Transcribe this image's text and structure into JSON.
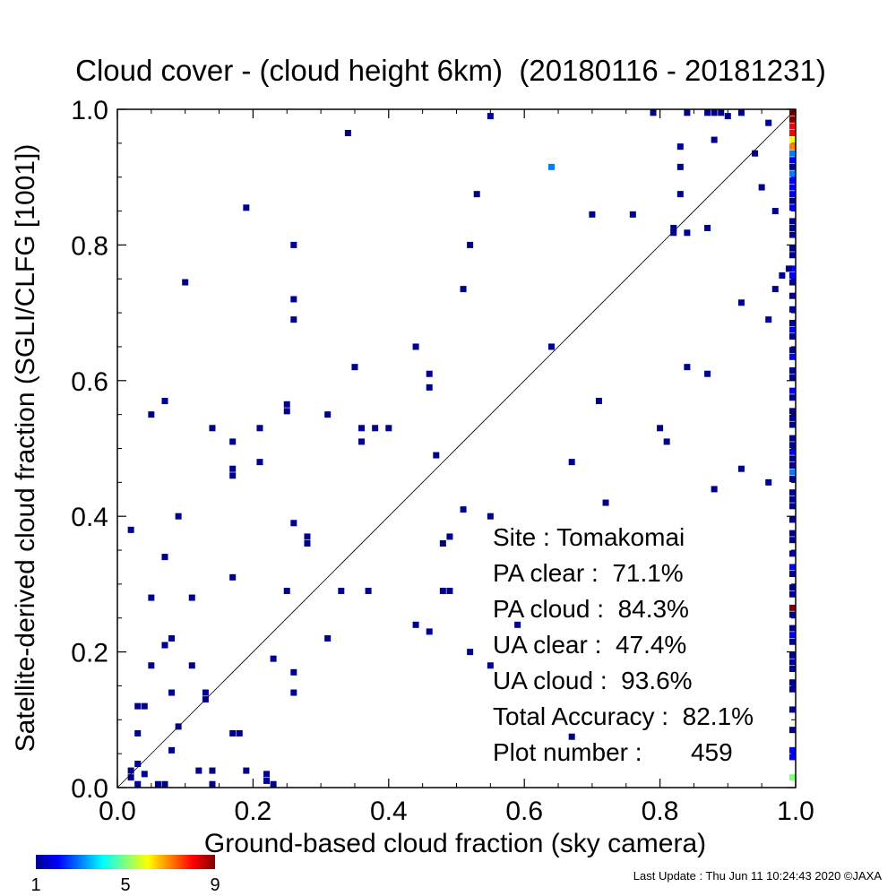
{
  "chart_data": {
    "type": "heatmap",
    "title": "Cloud cover - (cloud height 6km)  (20180116 - 20181231)",
    "xlabel": "Ground-based cloud fraction (sky camera)",
    "ylabel": "Satellite-derived cloud fraction (SGLI/CLFG [1001])",
    "xlim": [
      0.0,
      1.0
    ],
    "ylim": [
      0.0,
      1.0
    ],
    "xticks": [
      "0.0",
      "0.2",
      "0.4",
      "0.6",
      "0.8",
      "1.0"
    ],
    "yticks": [
      "0.0",
      "0.2",
      "0.4",
      "0.6",
      "0.8",
      "1.0"
    ],
    "diagonal": "1:1 line",
    "colorbar": {
      "min": 1,
      "max": 9,
      "ticks": [
        "1",
        "5",
        "9"
      ]
    },
    "points": [
      {
        "x": 0.55,
        "y": 0.99,
        "c": 1
      },
      {
        "x": 0.79,
        "y": 0.995,
        "c": 1
      },
      {
        "x": 0.84,
        "y": 0.995,
        "c": 1
      },
      {
        "x": 0.87,
        "y": 0.995,
        "c": 1
      },
      {
        "x": 0.88,
        "y": 0.995,
        "c": 1
      },
      {
        "x": 0.89,
        "y": 0.995,
        "c": 1
      },
      {
        "x": 0.9,
        "y": 0.99,
        "c": 1
      },
      {
        "x": 0.92,
        "y": 0.995,
        "c": 1
      },
      {
        "x": 0.96,
        "y": 0.98,
        "c": 1
      },
      {
        "x": 0.34,
        "y": 0.965,
        "c": 1
      },
      {
        "x": 0.64,
        "y": 0.915,
        "c": 3
      },
      {
        "x": 0.53,
        "y": 0.875,
        "c": 1
      },
      {
        "x": 0.19,
        "y": 0.855,
        "c": 1
      },
      {
        "x": 0.7,
        "y": 0.845,
        "c": 1
      },
      {
        "x": 0.76,
        "y": 0.845,
        "c": 1
      },
      {
        "x": 0.82,
        "y": 0.825,
        "c": 1
      },
      {
        "x": 0.82,
        "y": 0.818,
        "c": 1
      },
      {
        "x": 0.84,
        "y": 0.818,
        "c": 1
      },
      {
        "x": 0.87,
        "y": 0.825,
        "c": 1
      },
      {
        "x": 0.26,
        "y": 0.8,
        "c": 1
      },
      {
        "x": 0.52,
        "y": 0.8,
        "c": 1
      },
      {
        "x": 0.83,
        "y": 0.945,
        "c": 1
      },
      {
        "x": 0.83,
        "y": 0.915,
        "c": 1
      },
      {
        "x": 0.83,
        "y": 0.875,
        "c": 1
      },
      {
        "x": 0.88,
        "y": 0.955,
        "c": 1
      },
      {
        "x": 0.94,
        "y": 0.935,
        "c": 1
      },
      {
        "x": 0.95,
        "y": 0.885,
        "c": 1
      },
      {
        "x": 0.97,
        "y": 0.85,
        "c": 1
      },
      {
        "x": 0.97,
        "y": 0.735,
        "c": 1
      },
      {
        "x": 0.92,
        "y": 0.715,
        "c": 1
      },
      {
        "x": 0.96,
        "y": 0.69,
        "c": 1
      },
      {
        "x": 0.1,
        "y": 0.745,
        "c": 1
      },
      {
        "x": 0.51,
        "y": 0.735,
        "c": 1
      },
      {
        "x": 0.26,
        "y": 0.72,
        "c": 1
      },
      {
        "x": 0.26,
        "y": 0.69,
        "c": 1
      },
      {
        "x": 0.44,
        "y": 0.65,
        "c": 1
      },
      {
        "x": 0.64,
        "y": 0.65,
        "c": 1
      },
      {
        "x": 0.35,
        "y": 0.62,
        "c": 1
      },
      {
        "x": 0.46,
        "y": 0.61,
        "c": 1
      },
      {
        "x": 0.46,
        "y": 0.59,
        "c": 1
      },
      {
        "x": 0.84,
        "y": 0.62,
        "c": 1
      },
      {
        "x": 0.87,
        "y": 0.61,
        "c": 1
      },
      {
        "x": 0.07,
        "y": 0.57,
        "c": 1
      },
      {
        "x": 0.05,
        "y": 0.55,
        "c": 1
      },
      {
        "x": 0.25,
        "y": 0.565,
        "c": 1
      },
      {
        "x": 0.25,
        "y": 0.555,
        "c": 1
      },
      {
        "x": 0.31,
        "y": 0.55,
        "c": 1
      },
      {
        "x": 0.71,
        "y": 0.57,
        "c": 1
      },
      {
        "x": 0.14,
        "y": 0.53,
        "c": 1
      },
      {
        "x": 0.21,
        "y": 0.53,
        "c": 1
      },
      {
        "x": 0.36,
        "y": 0.53,
        "c": 1
      },
      {
        "x": 0.38,
        "y": 0.53,
        "c": 1
      },
      {
        "x": 0.4,
        "y": 0.53,
        "c": 1
      },
      {
        "x": 0.17,
        "y": 0.51,
        "c": 1
      },
      {
        "x": 0.36,
        "y": 0.51,
        "c": 1
      },
      {
        "x": 0.8,
        "y": 0.53,
        "c": 1
      },
      {
        "x": 0.81,
        "y": 0.51,
        "c": 1
      },
      {
        "x": 0.47,
        "y": 0.49,
        "c": 1
      },
      {
        "x": 0.21,
        "y": 0.48,
        "c": 1
      },
      {
        "x": 0.17,
        "y": 0.47,
        "c": 1
      },
      {
        "x": 0.17,
        "y": 0.46,
        "c": 1
      },
      {
        "x": 0.67,
        "y": 0.48,
        "c": 1
      },
      {
        "x": 0.92,
        "y": 0.47,
        "c": 1
      },
      {
        "x": 0.96,
        "y": 0.45,
        "c": 1
      },
      {
        "x": 0.88,
        "y": 0.44,
        "c": 1
      },
      {
        "x": 0.72,
        "y": 0.42,
        "c": 1
      },
      {
        "x": 0.51,
        "y": 0.41,
        "c": 1
      },
      {
        "x": 0.55,
        "y": 0.4,
        "c": 1
      },
      {
        "x": 0.09,
        "y": 0.4,
        "c": 1
      },
      {
        "x": 0.26,
        "y": 0.39,
        "c": 1
      },
      {
        "x": 0.02,
        "y": 0.38,
        "c": 1
      },
      {
        "x": 0.28,
        "y": 0.37,
        "c": 1
      },
      {
        "x": 0.28,
        "y": 0.36,
        "c": 1
      },
      {
        "x": 0.49,
        "y": 0.37,
        "c": 1
      },
      {
        "x": 0.48,
        "y": 0.36,
        "c": 1
      },
      {
        "x": 0.07,
        "y": 0.34,
        "c": 1
      },
      {
        "x": 0.17,
        "y": 0.31,
        "c": 1
      },
      {
        "x": 0.25,
        "y": 0.29,
        "c": 1
      },
      {
        "x": 0.33,
        "y": 0.29,
        "c": 1
      },
      {
        "x": 0.37,
        "y": 0.29,
        "c": 1
      },
      {
        "x": 0.48,
        "y": 0.29,
        "c": 1
      },
      {
        "x": 0.49,
        "y": 0.29,
        "c": 1
      },
      {
        "x": 0.05,
        "y": 0.28,
        "c": 1
      },
      {
        "x": 0.11,
        "y": 0.28,
        "c": 1
      },
      {
        "x": 0.44,
        "y": 0.24,
        "c": 1
      },
      {
        "x": 0.46,
        "y": 0.23,
        "c": 1
      },
      {
        "x": 0.59,
        "y": 0.24,
        "c": 1
      },
      {
        "x": 0.31,
        "y": 0.22,
        "c": 1
      },
      {
        "x": 0.08,
        "y": 0.22,
        "c": 1
      },
      {
        "x": 0.07,
        "y": 0.21,
        "c": 1
      },
      {
        "x": 0.52,
        "y": 0.2,
        "c": 1
      },
      {
        "x": 0.23,
        "y": 0.19,
        "c": 1
      },
      {
        "x": 0.05,
        "y": 0.18,
        "c": 1
      },
      {
        "x": 0.11,
        "y": 0.18,
        "c": 1
      },
      {
        "x": 0.55,
        "y": 0.18,
        "c": 1
      },
      {
        "x": 0.26,
        "y": 0.17,
        "c": 1
      },
      {
        "x": 0.26,
        "y": 0.14,
        "c": 1
      },
      {
        "x": 0.08,
        "y": 0.14,
        "c": 1
      },
      {
        "x": 0.13,
        "y": 0.14,
        "c": 1
      },
      {
        "x": 0.13,
        "y": 0.13,
        "c": 1
      },
      {
        "x": 0.03,
        "y": 0.12,
        "c": 1
      },
      {
        "x": 0.04,
        "y": 0.12,
        "c": 1
      },
      {
        "x": 0.09,
        "y": 0.09,
        "c": 1
      },
      {
        "x": 0.03,
        "y": 0.08,
        "c": 1
      },
      {
        "x": 0.17,
        "y": 0.08,
        "c": 1
      },
      {
        "x": 0.18,
        "y": 0.08,
        "c": 1
      },
      {
        "x": 0.67,
        "y": 0.075,
        "c": 1
      },
      {
        "x": 0.08,
        "y": 0.055,
        "c": 1
      },
      {
        "x": 0.03,
        "y": 0.035,
        "c": 1
      },
      {
        "x": 0.02,
        "y": 0.025,
        "c": 1
      },
      {
        "x": 0.02,
        "y": 0.015,
        "c": 1
      },
      {
        "x": 0.04,
        "y": 0.02,
        "c": 1
      },
      {
        "x": 0.12,
        "y": 0.025,
        "c": 1
      },
      {
        "x": 0.14,
        "y": 0.025,
        "c": 1
      },
      {
        "x": 0.19,
        "y": 0.025,
        "c": 1
      },
      {
        "x": 0.22,
        "y": 0.02,
        "c": 1
      },
      {
        "x": 0.22,
        "y": 0.01,
        "c": 1
      },
      {
        "x": 0.23,
        "y": 0.005,
        "c": 1
      },
      {
        "x": 0.03,
        "y": 0.005,
        "c": 1
      },
      {
        "x": 0.06,
        "y": 0.005,
        "c": 1
      },
      {
        "x": 0.07,
        "y": 0.005,
        "c": 1
      },
      {
        "x": 0.14,
        "y": 0.005,
        "c": 1
      },
      {
        "x": 1.0,
        "y": 0.995,
        "c": 9
      },
      {
        "x": 1.0,
        "y": 0.985,
        "c": 9
      },
      {
        "x": 1.0,
        "y": 0.975,
        "c": 8
      },
      {
        "x": 1.0,
        "y": 0.965,
        "c": 8
      },
      {
        "x": 1.0,
        "y": 0.955,
        "c": 6
      },
      {
        "x": 1.0,
        "y": 0.945,
        "c": 7
      },
      {
        "x": 1.0,
        "y": 0.935,
        "c": 3
      },
      {
        "x": 1.0,
        "y": 0.925,
        "c": 2
      },
      {
        "x": 1.0,
        "y": 0.915,
        "c": 1
      },
      {
        "x": 1.0,
        "y": 0.905,
        "c": 3
      },
      {
        "x": 1.0,
        "y": 0.895,
        "c": 2
      },
      {
        "x": 1.0,
        "y": 0.885,
        "c": 2
      },
      {
        "x": 1.0,
        "y": 0.875,
        "c": 2
      },
      {
        "x": 1.0,
        "y": 0.865,
        "c": 1
      },
      {
        "x": 1.0,
        "y": 0.855,
        "c": 2
      },
      {
        "x": 1.0,
        "y": 0.835,
        "c": 1
      },
      {
        "x": 1.0,
        "y": 0.825,
        "c": 1
      },
      {
        "x": 1.0,
        "y": 0.815,
        "c": 1
      },
      {
        "x": 1.0,
        "y": 0.795,
        "c": 1
      },
      {
        "x": 1.0,
        "y": 0.785,
        "c": 1
      },
      {
        "x": 1.0,
        "y": 0.765,
        "c": 2
      },
      {
        "x": 1.0,
        "y": 0.755,
        "c": 2
      },
      {
        "x": 0.99,
        "y": 0.765,
        "c": 1
      },
      {
        "x": 0.98,
        "y": 0.755,
        "c": 1
      },
      {
        "x": 1.0,
        "y": 0.745,
        "c": 1
      },
      {
        "x": 1.0,
        "y": 0.725,
        "c": 1
      },
      {
        "x": 1.0,
        "y": 0.705,
        "c": 1
      },
      {
        "x": 1.0,
        "y": 0.685,
        "c": 1
      },
      {
        "x": 1.0,
        "y": 0.675,
        "c": 2
      },
      {
        "x": 1.0,
        "y": 0.665,
        "c": 1
      },
      {
        "x": 1.0,
        "y": 0.645,
        "c": 1
      },
      {
        "x": 1.0,
        "y": 0.635,
        "c": 2
      },
      {
        "x": 1.0,
        "y": 0.615,
        "c": 1
      },
      {
        "x": 1.0,
        "y": 0.605,
        "c": 1
      },
      {
        "x": 1.0,
        "y": 0.585,
        "c": 2
      },
      {
        "x": 1.0,
        "y": 0.575,
        "c": 1
      },
      {
        "x": 1.0,
        "y": 0.555,
        "c": 1
      },
      {
        "x": 1.0,
        "y": 0.545,
        "c": 1
      },
      {
        "x": 1.0,
        "y": 0.535,
        "c": 1
      },
      {
        "x": 1.0,
        "y": 0.515,
        "c": 1
      },
      {
        "x": 1.0,
        "y": 0.505,
        "c": 1
      },
      {
        "x": 1.0,
        "y": 0.495,
        "c": 2
      },
      {
        "x": 1.0,
        "y": 0.485,
        "c": 1
      },
      {
        "x": 1.0,
        "y": 0.475,
        "c": 1
      },
      {
        "x": 1.0,
        "y": 0.465,
        "c": 3
      },
      {
        "x": 1.0,
        "y": 0.455,
        "c": 1
      },
      {
        "x": 1.0,
        "y": 0.435,
        "c": 1
      },
      {
        "x": 1.0,
        "y": 0.425,
        "c": 1
      },
      {
        "x": 1.0,
        "y": 0.415,
        "c": 1
      },
      {
        "x": 1.0,
        "y": 0.395,
        "c": 1
      },
      {
        "x": 1.0,
        "y": 0.375,
        "c": 1
      },
      {
        "x": 1.0,
        "y": 0.365,
        "c": 1
      },
      {
        "x": 1.0,
        "y": 0.345,
        "c": 1
      },
      {
        "x": 1.0,
        "y": 0.325,
        "c": 2
      },
      {
        "x": 1.0,
        "y": 0.315,
        "c": 1
      },
      {
        "x": 1.0,
        "y": 0.295,
        "c": 1
      },
      {
        "x": 1.0,
        "y": 0.285,
        "c": 1
      },
      {
        "x": 1.0,
        "y": 0.265,
        "c": 9
      },
      {
        "x": 1.0,
        "y": 0.255,
        "c": 1
      },
      {
        "x": 1.0,
        "y": 0.235,
        "c": 1
      },
      {
        "x": 1.0,
        "y": 0.225,
        "c": 2
      },
      {
        "x": 1.0,
        "y": 0.215,
        "c": 1
      },
      {
        "x": 1.0,
        "y": 0.195,
        "c": 1
      },
      {
        "x": 1.0,
        "y": 0.185,
        "c": 1
      },
      {
        "x": 1.0,
        "y": 0.175,
        "c": 1
      },
      {
        "x": 1.0,
        "y": 0.155,
        "c": 1
      },
      {
        "x": 1.0,
        "y": 0.145,
        "c": 1
      },
      {
        "x": 1.0,
        "y": 0.115,
        "c": 1
      },
      {
        "x": 1.0,
        "y": 0.085,
        "c": 1
      },
      {
        "x": 1.0,
        "y": 0.055,
        "c": 2
      },
      {
        "x": 1.0,
        "y": 0.045,
        "c": 2
      },
      {
        "x": 1.0,
        "y": 0.015,
        "c": 5
      }
    ]
  },
  "stats": {
    "site": "Site : Tomakomai",
    "pa_clear": "PA clear :  71.1%",
    "pa_cloud": "PA cloud :  84.3%",
    "ua_clear": "UA clear :  47.4%",
    "ua_cloud": "UA cloud :  93.6%",
    "total_accuracy": "Total Accuracy :  82.1%",
    "plot_number": "Plot number :       459"
  },
  "footer": "Last Update : Thu Jun 11 10:24:43 2020  ©JAXA",
  "colors": {
    "axis": "#000000",
    "diagonal": "#000000",
    "background": "#ffffff"
  }
}
